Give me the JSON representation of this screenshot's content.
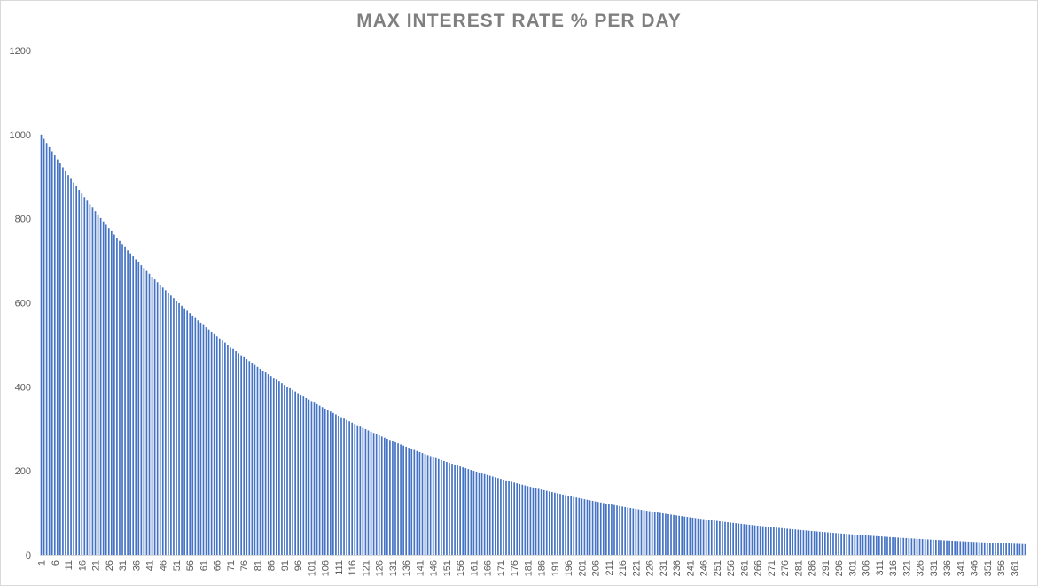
{
  "chart_data": {
    "type": "bar",
    "title": "MAX INTEREST RATE % PER DAY",
    "xlabel": "",
    "ylabel": "",
    "ylim": [
      0,
      1200
    ],
    "yticks": [
      0,
      200,
      400,
      600,
      800,
      1000,
      1200
    ],
    "x_start": 1,
    "x_end": 365,
    "x_label_every": 5,
    "value_model": "value(day) = 1000 * (0.99 ^ (day - 1)); start 1000 at day 1, about 100 near day 230, about 26 at day 365",
    "values_sampled": {
      "1": 1000,
      "21": 818,
      "41": 669,
      "61": 547,
      "81": 448,
      "101": 366,
      "121": 299,
      "141": 245,
      "161": 200,
      "181": 164,
      "201": 134,
      "221": 110,
      "241": 90,
      "261": 73,
      "281": 60,
      "301": 49,
      "321": 40,
      "341": 33,
      "365": 26
    },
    "bar_color": "#4472c4",
    "grid": false,
    "legend": "none"
  }
}
